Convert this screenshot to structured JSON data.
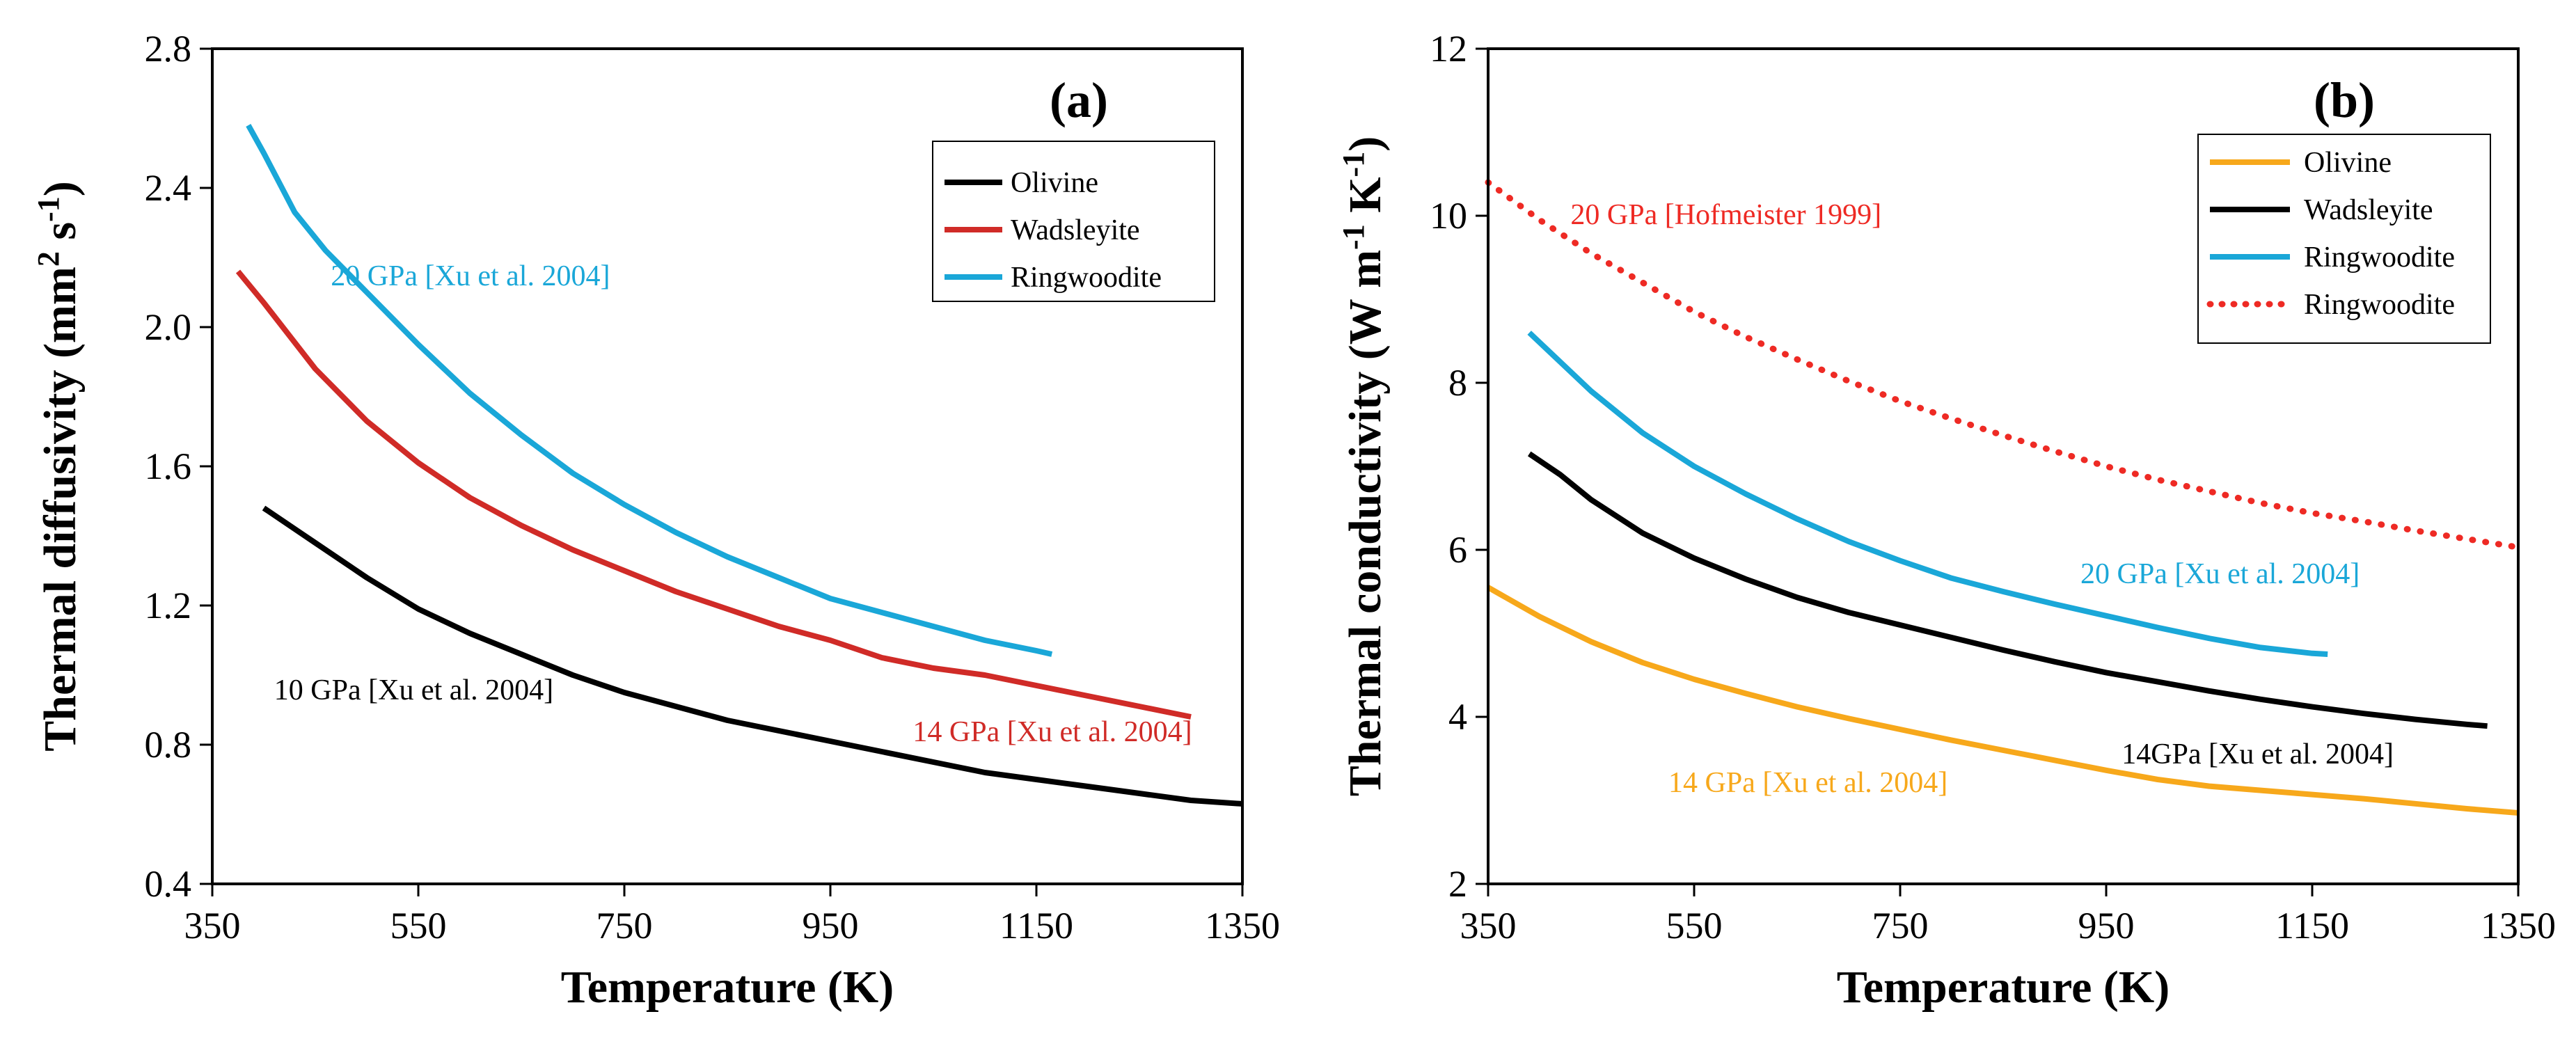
{
  "chart_data": [
    {
      "type": "line",
      "panel_label": "(a)",
      "xlabel": "Temperature (K)",
      "ylabel_main": "Thermal diffusivity (mm",
      "ylabel_sup1": "2",
      "ylabel_mid": " s",
      "ylabel_sup2": "-1",
      "ylabel_end": ")",
      "xlim": [
        350,
        1350
      ],
      "ylim": [
        0.4,
        2.8
      ],
      "xticks": [
        350,
        550,
        750,
        950,
        1150,
        1350
      ],
      "xtick_labels": [
        "350",
        "550",
        "750",
        "950",
        "1150",
        "1350"
      ],
      "yticks": [
        0.4,
        0.8,
        1.2,
        1.6,
        2.0,
        2.4,
        2.8
      ],
      "ytick_labels": [
        "0.4",
        "0.8",
        "1.2",
        "1.6",
        "2.0",
        "2.4",
        "2.8"
      ],
      "legend_position": "top-right",
      "series": [
        {
          "name": "Olivine",
          "color": "#000000",
          "style": "solid",
          "x": [
            400,
            450,
            500,
            550,
            600,
            650,
            700,
            750,
            800,
            850,
            900,
            950,
            1000,
            1050,
            1100,
            1150,
            1200,
            1250,
            1300,
            1350
          ],
          "y": [
            1.48,
            1.38,
            1.28,
            1.19,
            1.12,
            1.06,
            1.0,
            0.95,
            0.91,
            0.87,
            0.84,
            0.81,
            0.78,
            0.75,
            0.72,
            0.7,
            0.68,
            0.66,
            0.64,
            0.63
          ]
        },
        {
          "name": "Wadsleyite",
          "color": "#d02b27",
          "style": "solid",
          "x": [
            375,
            400,
            450,
            500,
            550,
            600,
            650,
            700,
            750,
            800,
            850,
            900,
            950,
            1000,
            1050,
            1100,
            1150,
            1200,
            1250,
            1300
          ],
          "y": [
            2.16,
            2.07,
            1.88,
            1.73,
            1.61,
            1.51,
            1.43,
            1.36,
            1.3,
            1.24,
            1.19,
            1.14,
            1.1,
            1.05,
            1.02,
            1.0,
            0.97,
            0.94,
            0.91,
            0.88
          ]
        },
        {
          "name": "Ringwoodite",
          "color": "#1aa7d8",
          "style": "solid",
          "x": [
            385,
            400,
            430,
            460,
            500,
            550,
            600,
            650,
            700,
            750,
            800,
            850,
            900,
            950,
            1000,
            1050,
            1100,
            1150,
            1165
          ],
          "y": [
            2.58,
            2.5,
            2.33,
            2.22,
            2.1,
            1.95,
            1.81,
            1.69,
            1.58,
            1.49,
            1.41,
            1.34,
            1.28,
            1.22,
            1.18,
            1.14,
            1.1,
            1.07,
            1.06
          ]
        }
      ],
      "annotations": [
        {
          "text": "20 GPa [Xu et al. 2004]",
          "color": "#1aa7d8",
          "x": 465,
          "y": 2.12
        },
        {
          "text": "10 GPa [Xu et al. 2004]",
          "color": "#000000",
          "x": 410,
          "y": 0.93
        },
        {
          "text": "14 GPa [Xu et al. 2004]",
          "color": "#d02b27",
          "x": 1030,
          "y": 0.81
        }
      ]
    },
    {
      "type": "line",
      "panel_label": "(b)",
      "xlabel": "Temperature (K)",
      "ylabel_main": "Thermal conductivity (W m",
      "ylabel_sup1": "-1",
      "ylabel_mid": " K",
      "ylabel_sup2": "-1",
      "ylabel_end": ")",
      "xlim": [
        350,
        1350
      ],
      "ylim": [
        2,
        12
      ],
      "xticks": [
        350,
        550,
        750,
        950,
        1150,
        1350
      ],
      "xtick_labels": [
        "350",
        "550",
        "750",
        "950",
        "1150",
        "1350"
      ],
      "yticks": [
        2,
        4,
        6,
        8,
        10,
        12
      ],
      "ytick_labels": [
        "2",
        "4",
        "6",
        "8",
        "10",
        "12"
      ],
      "legend_position": "top-right",
      "series": [
        {
          "name": "Olivine",
          "color": "#f7a81b",
          "style": "solid",
          "x": [
            350,
            400,
            450,
            500,
            550,
            600,
            650,
            700,
            750,
            800,
            850,
            900,
            950,
            1000,
            1050,
            1100,
            1150,
            1200,
            1250,
            1300,
            1350
          ],
          "y": [
            5.55,
            5.2,
            4.9,
            4.65,
            4.45,
            4.28,
            4.12,
            3.98,
            3.85,
            3.72,
            3.6,
            3.48,
            3.36,
            3.25,
            3.17,
            3.12,
            3.07,
            3.02,
            2.96,
            2.9,
            2.85
          ]
        },
        {
          "name": "Wadsleyite",
          "color": "#000000",
          "style": "solid",
          "x": [
            390,
            420,
            450,
            500,
            550,
            600,
            650,
            700,
            750,
            800,
            850,
            900,
            950,
            1000,
            1050,
            1100,
            1150,
            1200,
            1250,
            1300,
            1320
          ],
          "y": [
            7.15,
            6.9,
            6.6,
            6.2,
            5.9,
            5.65,
            5.43,
            5.25,
            5.1,
            4.95,
            4.8,
            4.66,
            4.53,
            4.42,
            4.31,
            4.21,
            4.12,
            4.04,
            3.97,
            3.91,
            3.89
          ]
        },
        {
          "name": "Ringwoodite",
          "color": "#1aa7d8",
          "style": "solid",
          "x": [
            390,
            420,
            450,
            500,
            550,
            600,
            650,
            700,
            750,
            800,
            850,
            900,
            950,
            1000,
            1050,
            1100,
            1150,
            1165
          ],
          "y": [
            8.6,
            8.25,
            7.9,
            7.4,
            7.0,
            6.67,
            6.37,
            6.1,
            5.87,
            5.66,
            5.5,
            5.35,
            5.21,
            5.07,
            4.94,
            4.83,
            4.76,
            4.75
          ]
        },
        {
          "name": "Ringwoodite",
          "color": "#ee2a24",
          "style": "dotted",
          "x": [
            350,
            400,
            450,
            500,
            550,
            600,
            650,
            700,
            750,
            800,
            850,
            900,
            950,
            1000,
            1050,
            1100,
            1150,
            1200,
            1250,
            1300,
            1350
          ],
          "y": [
            10.4,
            9.95,
            9.55,
            9.2,
            8.85,
            8.55,
            8.28,
            8.02,
            7.78,
            7.57,
            7.37,
            7.18,
            7.0,
            6.84,
            6.7,
            6.56,
            6.44,
            6.34,
            6.23,
            6.13,
            6.03
          ]
        }
      ],
      "annotations": [
        {
          "text": "20 GPa [Hofmeister 1999]",
          "color": "#ee2a24",
          "x": 430,
          "y": 9.9
        },
        {
          "text": "20 GPa [Xu et al. 2004]",
          "color": "#1aa7d8",
          "x": 925,
          "y": 5.6
        },
        {
          "text": "14GPa [Xu et al. 2004]",
          "color": "#000000",
          "x": 965,
          "y": 3.44
        },
        {
          "text": "14 GPa [Xu et al. 2004]",
          "color": "#f7a81b",
          "x": 525,
          "y": 3.1
        }
      ]
    }
  ]
}
